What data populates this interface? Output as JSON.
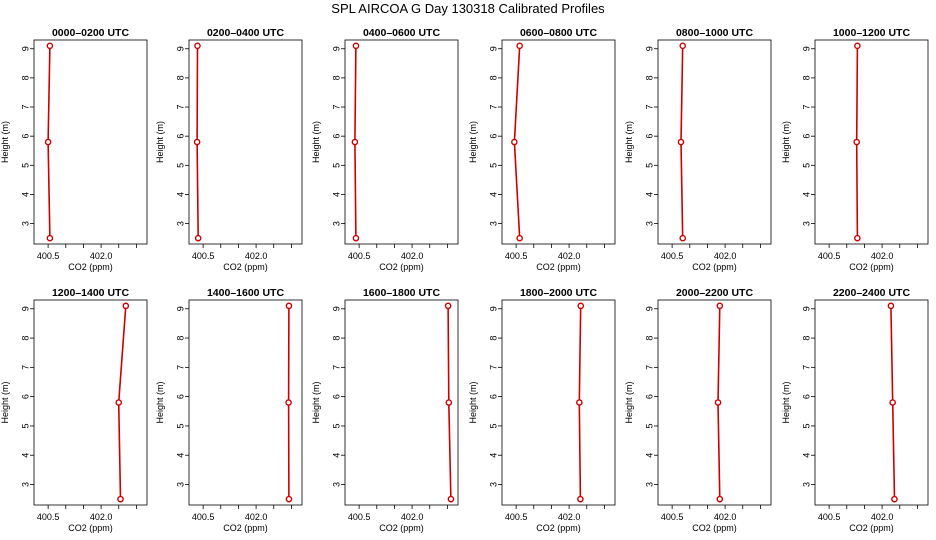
{
  "title": "SPL AIRCOA G  Day 130318  Calibrated Profiles",
  "colors": {
    "series": "#cc0000",
    "axis": "#000000"
  },
  "chart_data": [
    {
      "type": "line",
      "title": "0000–0200 UTC",
      "xlabel": "CO2 (ppm)",
      "ylabel": "Height (m)",
      "xticks": [
        "400.5",
        "402.0"
      ],
      "yticks": [
        3,
        4,
        5,
        6,
        7,
        8,
        9
      ],
      "xlim": [
        400.1,
        403.3
      ],
      "ylim": [
        2.3,
        9.3
      ],
      "series": [
        {
          "values": [
            {
              "x": 400.55,
              "y": 2.5
            },
            {
              "x": 400.5,
              "y": 5.8
            },
            {
              "x": 400.55,
              "y": 9.1
            }
          ]
        }
      ]
    },
    {
      "type": "line",
      "title": "0200–0400 UTC",
      "xlabel": "CO2 (ppm)",
      "ylabel": "Height (m)",
      "xticks": [
        "400.5",
        "402.0"
      ],
      "yticks": [
        3,
        4,
        5,
        6,
        7,
        8,
        9
      ],
      "xlim": [
        400.1,
        403.3
      ],
      "ylim": [
        2.3,
        9.3
      ],
      "series": [
        {
          "values": [
            {
              "x": 400.36,
              "y": 2.5
            },
            {
              "x": 400.33,
              "y": 5.8
            },
            {
              "x": 400.34,
              "y": 9.1
            }
          ]
        }
      ]
    },
    {
      "type": "line",
      "title": "0400–0600 UTC",
      "xlabel": "CO2 (ppm)",
      "ylabel": "Height (m)",
      "xticks": [
        "400.5",
        "402.0"
      ],
      "yticks": [
        3,
        4,
        5,
        6,
        7,
        8,
        9
      ],
      "xlim": [
        400.1,
        403.3
      ],
      "ylim": [
        2.3,
        9.3
      ],
      "series": [
        {
          "values": [
            {
              "x": 400.41,
              "y": 2.5
            },
            {
              "x": 400.38,
              "y": 5.8
            },
            {
              "x": 400.41,
              "y": 9.1
            }
          ]
        }
      ]
    },
    {
      "type": "line",
      "title": "0600–0800 UTC",
      "xlabel": "CO2 (ppm)",
      "ylabel": "Height (m)",
      "xticks": [
        "400.5",
        "402.0"
      ],
      "yticks": [
        3,
        4,
        5,
        6,
        7,
        8,
        9
      ],
      "xlim": [
        400.1,
        403.3
      ],
      "ylim": [
        2.3,
        9.3
      ],
      "series": [
        {
          "values": [
            {
              "x": 400.6,
              "y": 2.5
            },
            {
              "x": 400.45,
              "y": 5.8
            },
            {
              "x": 400.6,
              "y": 9.1
            }
          ]
        }
      ]
    },
    {
      "type": "line",
      "title": "0800–1000 UTC",
      "xlabel": "CO2 (ppm)",
      "ylabel": "Height (m)",
      "xticks": [
        "400.5",
        "402.0"
      ],
      "yticks": [
        3,
        4,
        5,
        6,
        7,
        8,
        9
      ],
      "xlim": [
        400.1,
        403.3
      ],
      "ylim": [
        2.3,
        9.3
      ],
      "series": [
        {
          "values": [
            {
              "x": 400.8,
              "y": 2.5
            },
            {
              "x": 400.75,
              "y": 5.8
            },
            {
              "x": 400.8,
              "y": 9.1
            }
          ]
        }
      ]
    },
    {
      "type": "line",
      "title": "1000–1200 UTC",
      "xlabel": "CO2 (ppm)",
      "ylabel": "Height (m)",
      "xticks": [
        "400.5",
        "402.0"
      ],
      "yticks": [
        3,
        4,
        5,
        6,
        7,
        8,
        9
      ],
      "xlim": [
        400.1,
        403.3
      ],
      "ylim": [
        2.3,
        9.3
      ],
      "series": [
        {
          "values": [
            {
              "x": 401.3,
              "y": 2.5
            },
            {
              "x": 401.28,
              "y": 5.8
            },
            {
              "x": 401.3,
              "y": 9.1
            }
          ]
        }
      ]
    },
    {
      "type": "line",
      "title": "1200–1400 UTC",
      "xlabel": "CO2 (ppm)",
      "ylabel": "Height (m)",
      "xticks": [
        "400.5",
        "402.0"
      ],
      "yticks": [
        3,
        4,
        5,
        6,
        7,
        8,
        9
      ],
      "xlim": [
        400.1,
        403.3
      ],
      "ylim": [
        2.3,
        9.3
      ],
      "series": [
        {
          "values": [
            {
              "x": 402.55,
              "y": 2.5
            },
            {
              "x": 402.5,
              "y": 5.8
            },
            {
              "x": 402.7,
              "y": 9.1
            }
          ]
        }
      ]
    },
    {
      "type": "line",
      "title": "1400–1600 UTC",
      "xlabel": "CO2 (ppm)",
      "ylabel": "Height (m)",
      "xticks": [
        "400.5",
        "402.0"
      ],
      "yticks": [
        3,
        4,
        5,
        6,
        7,
        8,
        9
      ],
      "xlim": [
        400.1,
        403.3
      ],
      "ylim": [
        2.3,
        9.3
      ],
      "series": [
        {
          "values": [
            {
              "x": 402.93,
              "y": 2.5
            },
            {
              "x": 402.92,
              "y": 5.8
            },
            {
              "x": 402.93,
              "y": 9.1
            }
          ]
        }
      ]
    },
    {
      "type": "line",
      "title": "1600–1800 UTC",
      "xlabel": "CO2 (ppm)",
      "ylabel": "Height (m)",
      "xticks": [
        "400.5",
        "402.0"
      ],
      "yticks": [
        3,
        4,
        5,
        6,
        7,
        8,
        9
      ],
      "xlim": [
        400.1,
        403.3
      ],
      "ylim": [
        2.3,
        9.3
      ],
      "series": [
        {
          "values": [
            {
              "x": 403.1,
              "y": 2.5
            },
            {
              "x": 403.04,
              "y": 5.8
            },
            {
              "x": 403.02,
              "y": 9.1
            }
          ]
        }
      ]
    },
    {
      "type": "line",
      "title": "1800–2000 UTC",
      "xlabel": "CO2 (ppm)",
      "ylabel": "Height (m)",
      "xticks": [
        "400.5",
        "402.0"
      ],
      "yticks": [
        3,
        4,
        5,
        6,
        7,
        8,
        9
      ],
      "xlim": [
        400.1,
        403.3
      ],
      "ylim": [
        2.3,
        9.3
      ],
      "series": [
        {
          "values": [
            {
              "x": 402.32,
              "y": 2.5
            },
            {
              "x": 402.29,
              "y": 5.8
            },
            {
              "x": 402.33,
              "y": 9.1
            }
          ]
        }
      ]
    },
    {
      "type": "line",
      "title": "2000–2200 UTC",
      "xlabel": "CO2 (ppm)",
      "ylabel": "Height (m)",
      "xticks": [
        "400.5",
        "402.0"
      ],
      "yticks": [
        3,
        4,
        5,
        6,
        7,
        8,
        9
      ],
      "xlim": [
        400.1,
        403.3
      ],
      "ylim": [
        2.3,
        9.3
      ],
      "series": [
        {
          "values": [
            {
              "x": 401.85,
              "y": 2.5
            },
            {
              "x": 401.8,
              "y": 5.8
            },
            {
              "x": 401.85,
              "y": 9.1
            }
          ]
        }
      ]
    },
    {
      "type": "line",
      "title": "2200–2400 UTC",
      "xlabel": "CO2 (ppm)",
      "ylabel": "Height (m)",
      "xticks": [
        "400.5",
        "402.0"
      ],
      "yticks": [
        3,
        4,
        5,
        6,
        7,
        8,
        9
      ],
      "xlim": [
        400.1,
        403.3
      ],
      "ylim": [
        2.3,
        9.3
      ],
      "series": [
        {
          "values": [
            {
              "x": 402.35,
              "y": 2.5
            },
            {
              "x": 402.3,
              "y": 5.8
            },
            {
              "x": 402.25,
              "y": 9.1
            }
          ]
        }
      ]
    }
  ]
}
